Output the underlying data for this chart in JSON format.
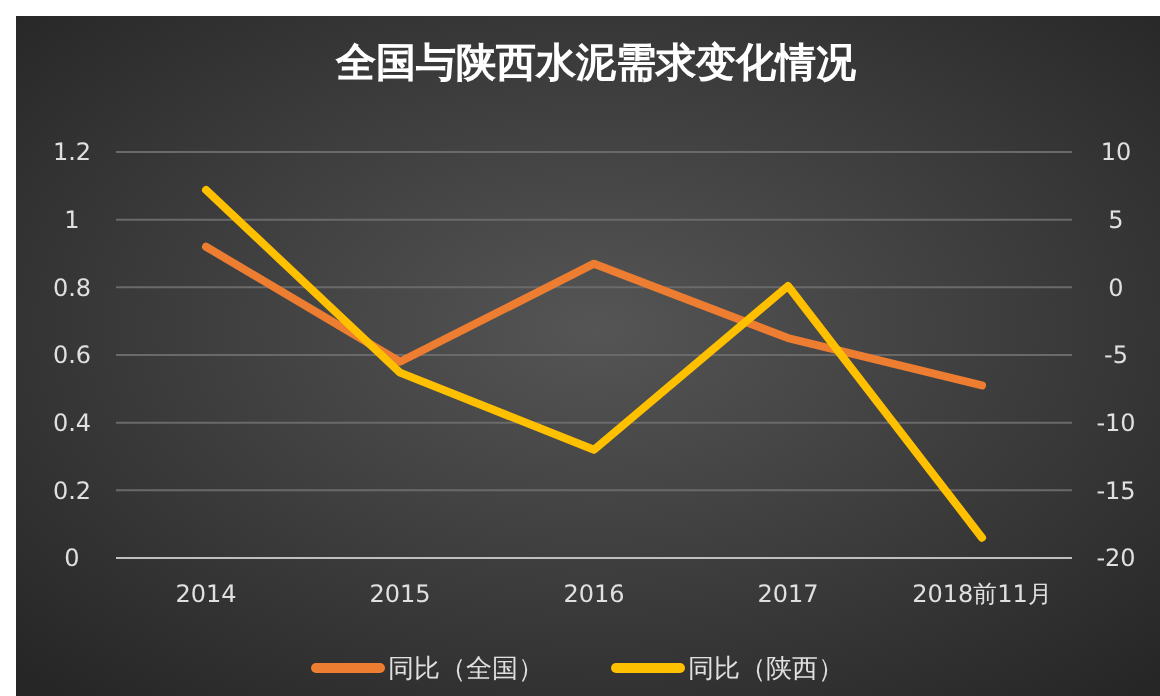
{
  "chart_data": {
    "type": "line",
    "title": "全国与陕西水泥需求变化情况",
    "categories": [
      "2014",
      "2015",
      "2016",
      "2017",
      "2018前11月"
    ],
    "series": [
      {
        "name": "同比（全国）",
        "color": "#ed7d31",
        "values": [
          0.92,
          0.58,
          0.87,
          0.65,
          0.51
        ]
      },
      {
        "name": "同比（陕西）",
        "color": "#ffc000",
        "values": [
          7.2,
          -6.3,
          -12,
          0.1,
          -18.5
        ],
        "axis": "y2"
      }
    ],
    "ylim": [
      0,
      1.2
    ],
    "yticks": [
      0,
      {
        "value": 0.2,
        "label": "0.2"
      },
      {
        "value": 0.4,
        "label": "0.4"
      },
      {
        "value": 0.6,
        "label": "0.6"
      },
      {
        "value": 0.8,
        "label": "0.8"
      },
      1,
      {
        "value": 1.2,
        "label": "1.2"
      }
    ],
    "y2lim": [
      -20,
      10
    ],
    "y2ticks": [
      -20,
      -15,
      -10,
      -5,
      0,
      5,
      10
    ],
    "grid": "y",
    "legend": "bottom",
    "marker": "none",
    "line_style": "solid"
  }
}
